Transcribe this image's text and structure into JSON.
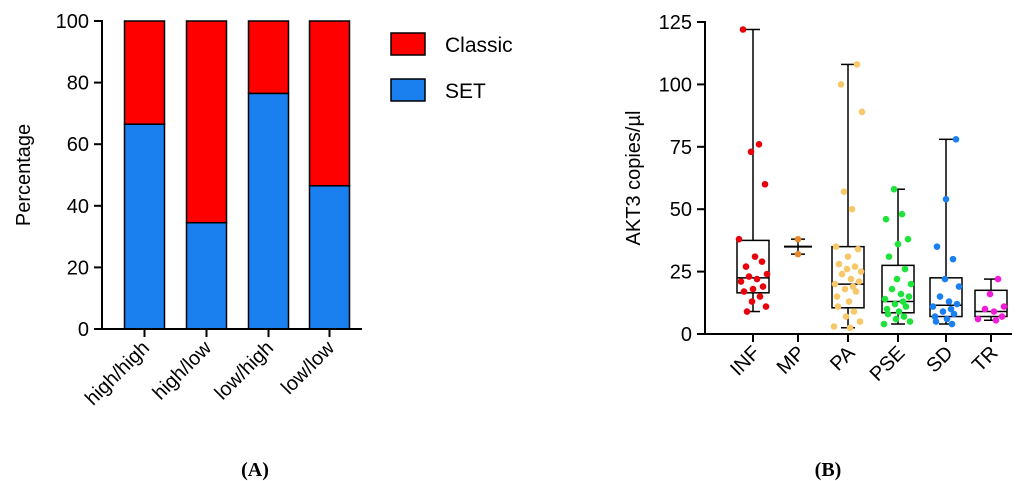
{
  "chart_data": [
    {
      "type": "bar",
      "stacked": true,
      "panel_label": "(A)",
      "categories": [
        "high/high",
        "high/low",
        "low/high",
        "low/low"
      ],
      "series": [
        {
          "name": "SET",
          "color": "#1a80f0",
          "values": [
            66.5,
            34.5,
            76.5,
            46.5
          ]
        },
        {
          "name": "Classic",
          "color": "#ff0000",
          "values": [
            33.5,
            65.5,
            23.5,
            53.5
          ]
        }
      ],
      "ylabel": "Percentage",
      "ylim": [
        0,
        100
      ],
      "yticks": [
        0,
        20,
        40,
        60,
        80,
        100
      ],
      "legend_position": "top-right",
      "grid": false
    },
    {
      "type": "box",
      "panel_label": "(B)",
      "categories": [
        "INF",
        "MP",
        "PA",
        "PSE",
        "SD",
        "TR"
      ],
      "ylabel": "AKT3 copies/µl",
      "ylim": [
        0,
        125
      ],
      "yticks": [
        0,
        25,
        50,
        75,
        100,
        125
      ],
      "grid": false,
      "groups": [
        {
          "name": "INF",
          "color": "#e8000b",
          "min": 9,
          "q1": 16.5,
          "median": 22.5,
          "q3": 37.5,
          "max": 122,
          "points": [
            122,
            76,
            73,
            60,
            38,
            31,
            29,
            27,
            24,
            23,
            22,
            21,
            19,
            18,
            17,
            15,
            13,
            11,
            9
          ]
        },
        {
          "name": "MP",
          "color": "#e9882b",
          "min": 32,
          "median": 35,
          "max": 38,
          "mean_only": true,
          "points": [
            38,
            32
          ]
        },
        {
          "name": "PA",
          "color": "#f7c86a",
          "min": 2.5,
          "q1": 10.5,
          "median": 20,
          "q3": 35,
          "max": 108,
          "points": [
            108,
            100,
            89,
            57,
            50,
            35,
            34,
            31,
            28,
            27,
            26,
            25,
            24,
            22,
            21,
            20,
            19,
            18,
            17,
            15,
            13,
            11,
            9,
            7,
            5,
            3,
            2.5
          ]
        },
        {
          "name": "PSE",
          "color": "#1ee33b",
          "min": 4,
          "q1": 8.5,
          "median": 13,
          "q3": 27.5,
          "max": 58,
          "points": [
            58,
            48,
            46,
            38,
            36,
            31,
            26,
            22,
            20,
            18,
            16,
            15,
            14,
            13,
            12,
            11,
            10,
            9,
            8,
            7,
            6,
            5,
            4
          ]
        },
        {
          "name": "SD",
          "color": "#1a80f0",
          "min": 4,
          "q1": 7,
          "median": 11.5,
          "q3": 22.5,
          "max": 78,
          "points": [
            78,
            54,
            35,
            30,
            22,
            19,
            15,
            13,
            12,
            11,
            10,
            9,
            8,
            7,
            6,
            5,
            4
          ]
        },
        {
          "name": "TR",
          "color": "#f21bd7",
          "min": 5.5,
          "q1": 7,
          "median": 9,
          "q3": 17.5,
          "max": 22,
          "points": [
            22,
            16,
            11,
            10,
            9,
            7,
            6,
            5.5
          ]
        }
      ]
    }
  ]
}
